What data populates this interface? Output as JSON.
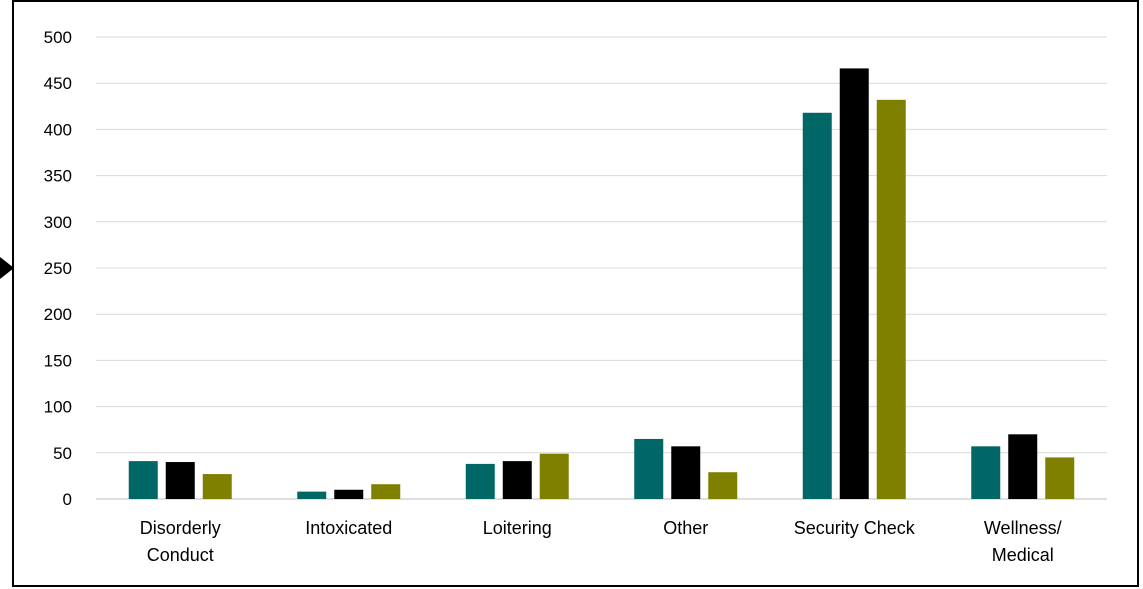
{
  "chart_data": {
    "type": "bar",
    "categories": [
      [
        "Disorderly",
        "Conduct"
      ],
      [
        "Intoxicated"
      ],
      [
        "Loitering"
      ],
      [
        "Other"
      ],
      [
        "Security Check"
      ],
      [
        "Wellness/",
        "Medical"
      ]
    ],
    "series": [
      {
        "values": [
          41,
          8,
          38,
          65,
          418,
          57
        ],
        "color": "#006666"
      },
      {
        "values": [
          40,
          10,
          41,
          57,
          466,
          70
        ],
        "color": "#000000"
      },
      {
        "values": [
          27,
          16,
          49,
          29,
          432,
          45
        ],
        "color": "#808000"
      }
    ],
    "ylim": [
      0,
      500
    ],
    "yticks": [
      0,
      50,
      100,
      150,
      200,
      250,
      300,
      350,
      400,
      450,
      500
    ],
    "grid": true,
    "title": "",
    "xlabel": "",
    "ylabel": ""
  },
  "colors": {
    "gridline": "#d9d9d9",
    "axis": "#bfbfbf",
    "arrow": "#000000"
  },
  "icons": {
    "pointer": "triangle-right-icon"
  }
}
